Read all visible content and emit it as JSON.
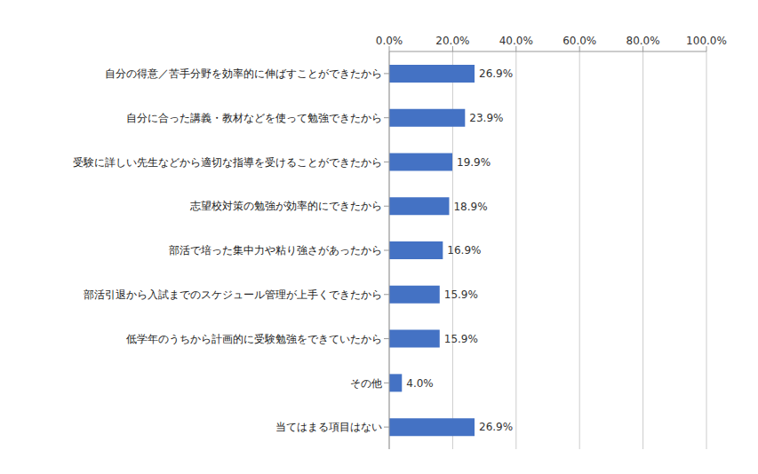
{
  "chart_data": {
    "type": "bar",
    "orientation": "horizontal",
    "categories": [
      "自分の得意／苦手分野を効率的に伸ばすことができたから",
      "自分に合った講義・教材などを使って勉強できたから",
      "受験に詳しい先生などから適切な指導を受けることができたから",
      "志望校対策の勉強が効率的にできたから",
      "部活で培った集中力や粘り強さがあったから",
      "部活引退から入試までのスケジュール管理が上手くできたから",
      "低学年のうちから計画的に受験勉強をできていたから",
      "その他",
      "当てはまる項目はない"
    ],
    "values": [
      26.9,
      23.9,
      19.9,
      18.9,
      16.9,
      15.9,
      15.9,
      4.0,
      26.9
    ],
    "value_labels": [
      "26.9%",
      "23.9%",
      "19.9%",
      "18.9%",
      "16.9%",
      "15.9%",
      "15.9%",
      "4.0%",
      "26.9%"
    ],
    "data_labels": true,
    "color": "#4472c4",
    "xlim": [
      0,
      100
    ],
    "xticks": [
      {
        "value": 0,
        "label": "0.0%"
      },
      {
        "value": 20,
        "label": "20.0%"
      },
      {
        "value": 40,
        "label": "40.0%"
      },
      {
        "value": 60,
        "label": "60.0%"
      },
      {
        "value": 80,
        "label": "80.0%"
      },
      {
        "value": 100,
        "label": "100.0%"
      }
    ],
    "grid": true
  }
}
